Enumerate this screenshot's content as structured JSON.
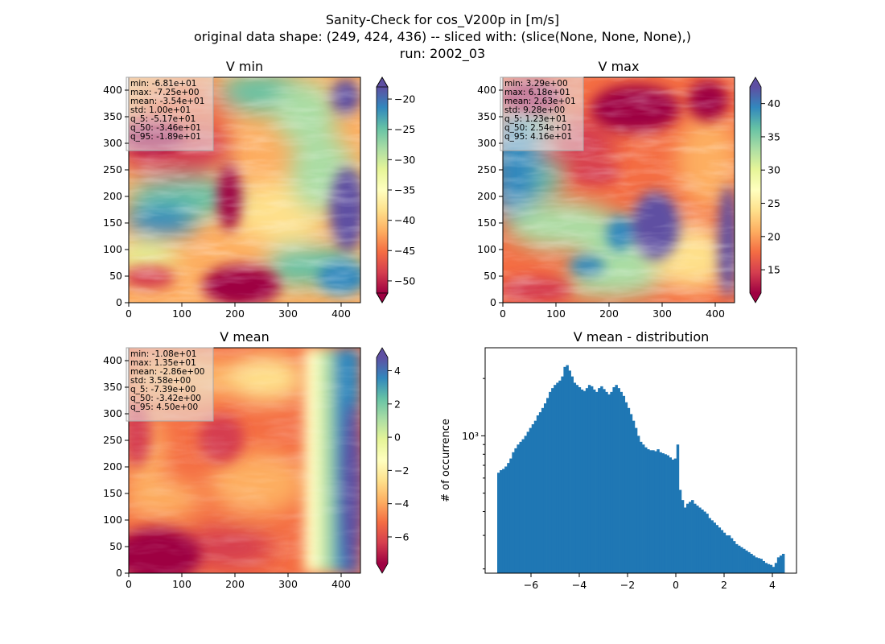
{
  "title_lines": [
    "Sanity-Check for cos_V200p in [m/s]",
    "original data shape: (249, 424, 436) -- sliced with: (slice(None, None, None),)",
    "run: 2002_03"
  ],
  "panels": [
    {
      "title": "V min",
      "stats": [
        "min: -6.81e+01",
        "max: -7.25e+00",
        "mean: -3.54e+01",
        "std: 1.00e+01",
        "q_5: -5.17e+01",
        "q_50: -3.46e+01",
        "q_95: -1.89e+01"
      ],
      "x_ticks": [
        "0",
        "100",
        "200",
        "300",
        "400"
      ],
      "y_ticks": [
        "0",
        "50",
        "100",
        "150",
        "200",
        "250",
        "300",
        "350",
        "400"
      ],
      "colorbar": {
        "range": [
          -52,
          -18
        ],
        "ticks": [
          "−50",
          "−45",
          "−40",
          "−35",
          "−30",
          "−25",
          "−20"
        ]
      }
    },
    {
      "title": "V max",
      "stats": [
        "min: 3.29e+00",
        "max: 6.18e+01",
        "mean: 2.63e+01",
        "std: 9.28e+00",
        "q_5: 1.23e+01",
        "q_50: 2.54e+01",
        "q_95: 4.16e+01"
      ],
      "x_ticks": [
        "0",
        "100",
        "200",
        "300",
        "400"
      ],
      "y_ticks": [
        "0",
        "50",
        "100",
        "150",
        "200",
        "250",
        "300",
        "350",
        "400"
      ],
      "colorbar": {
        "range": [
          11.5,
          42.5
        ],
        "ticks": [
          "15",
          "20",
          "25",
          "30",
          "35",
          "40"
        ]
      }
    },
    {
      "title": "V mean",
      "stats": [
        "min: -1.08e+01",
        "max: 1.35e+01",
        "mean: -2.86e+00",
        "std: 3.58e+00",
        "q_5: -7.39e+00",
        "q_50: -3.42e+00",
        "q_95: 4.50e+00"
      ],
      "x_ticks": [
        "0",
        "100",
        "200",
        "300",
        "400"
      ],
      "y_ticks": [
        "0",
        "50",
        "100",
        "150",
        "200",
        "250",
        "300",
        "350",
        "400"
      ],
      "colorbar": {
        "range": [
          -7.6,
          4.8
        ],
        "ticks": [
          "−6",
          "−4",
          "−2",
          "0",
          "2",
          "4"
        ]
      }
    }
  ],
  "chart_data": {
    "type": "bar",
    "title": "V mean - distribution",
    "xlabel": "",
    "ylabel": "# of occurrence",
    "y_scale": "log",
    "xlim": [
      -7.9,
      5.0
    ],
    "ylim": [
      190,
      2900
    ],
    "x_ticks": [
      "−6",
      "−4",
      "−2",
      "0",
      "2",
      "4"
    ],
    "y_tick_label": "10³",
    "bar_color": "#1f77b4",
    "bin_range": [
      -7.4,
      4.5
    ],
    "values": [
      640,
      660,
      670,
      690,
      720,
      760,
      820,
      860,
      900,
      930,
      960,
      1000,
      1050,
      1100,
      1150,
      1200,
      1280,
      1330,
      1400,
      1480,
      1580,
      1700,
      1780,
      1850,
      1900,
      1950,
      2050,
      2300,
      2350,
      2200,
      2050,
      1900,
      1850,
      1800,
      1750,
      1720,
      1780,
      1850,
      1820,
      1750,
      1700,
      1780,
      1820,
      1760,
      1700,
      1650,
      1700,
      1800,
      1850,
      1780,
      1700,
      1620,
      1500,
      1400,
      1300,
      1200,
      1100,
      1000,
      930,
      900,
      870,
      850,
      840,
      840,
      830,
      850,
      820,
      810,
      800,
      790,
      770,
      750,
      760,
      900,
      520,
      460,
      420,
      440,
      450,
      460,
      440,
      430,
      420,
      410,
      400,
      390,
      370,
      360,
      350,
      340,
      330,
      320,
      310,
      300,
      300,
      290,
      280,
      270,
      265,
      260,
      255,
      250,
      245,
      240,
      235,
      230,
      228,
      226,
      220,
      215,
      212,
      210,
      205,
      215,
      230,
      235,
      240
    ]
  }
}
